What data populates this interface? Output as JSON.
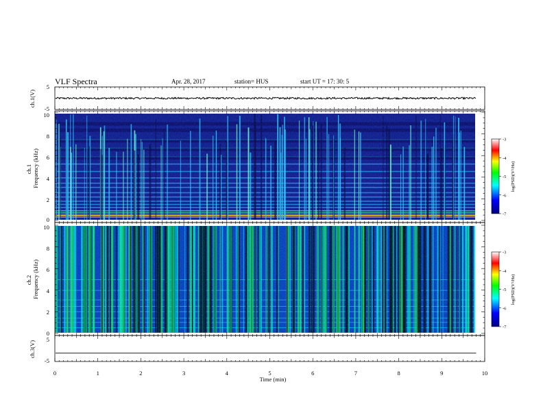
{
  "header": {
    "title": "VLF Spectra",
    "date": "Apr. 28, 2017",
    "station": "station= HUS",
    "start": "start  UT  =   17: 30: 5"
  },
  "colors": {
    "background": "#000000",
    "colormap": [
      "#000080",
      "#0000ff",
      "#00ffff",
      "#00ff00",
      "#ffff00",
      "#ff0000",
      "#ffffff"
    ]
  },
  "chart_data": [
    {
      "type": "line",
      "id": "ch1-waveform",
      "ylabel": "ch.1(V)",
      "ylim": [
        -5,
        5
      ],
      "yticks": [
        "5",
        "-5"
      ],
      "trace_level_v": 0,
      "trace_amplitude_v": 0.4
    },
    {
      "type": "heatmap",
      "id": "ch1-spectrogram",
      "ylabel": "ch.1\nFrequency (kHz)",
      "ylim": [
        0,
        10
      ],
      "yticks": [
        "0",
        "2",
        "4",
        "6",
        "8",
        "10"
      ],
      "colorbar": {
        "label": "log(PSD)(V²/Hz)",
        "range": [
          -7,
          -3
        ],
        "ticks": [
          "-3",
          "-4",
          "-5",
          "-6",
          "-7"
        ]
      }
    },
    {
      "type": "heatmap",
      "id": "ch2-spectrogram",
      "ylabel": "ch.2\nFrequency (kHz)",
      "ylim": [
        0,
        10
      ],
      "yticks": [
        "0",
        "2",
        "4",
        "6",
        "8",
        "10"
      ],
      "colorbar": {
        "label": "log(PSD)(V²/Hz)",
        "range": [
          -7,
          -3
        ],
        "ticks": [
          "-3",
          "-4",
          "-5",
          "-6",
          "-7"
        ]
      }
    },
    {
      "type": "line",
      "id": "ch3-waveform",
      "ylabel": "ch.3(V)",
      "ylim": [
        -5,
        5
      ],
      "yticks": [
        "5",
        "-5"
      ],
      "trace_level_v": -1.8,
      "trace_amplitude_v": 0
    }
  ],
  "x_axis": {
    "xlabel": "Time (min)",
    "xlim": [
      0,
      10
    ],
    "data_end_min": 9.8,
    "ticks": [
      "0",
      "1",
      "2",
      "3",
      "4",
      "5",
      "6",
      "7",
      "8",
      "9",
      "10"
    ]
  }
}
